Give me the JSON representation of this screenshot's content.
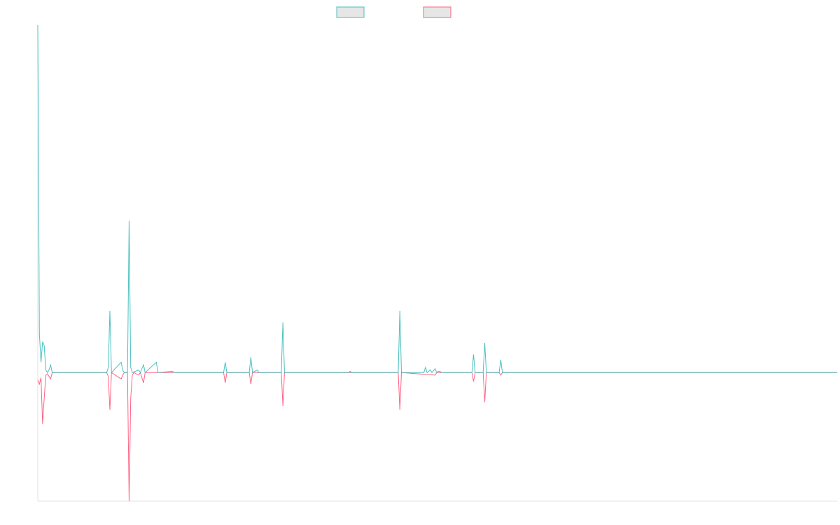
{
  "chart_data": {
    "type": "line",
    "title": "",
    "xlabel": "",
    "ylabel": "",
    "x_count": 500,
    "ylim": [
      -100,
      270
    ],
    "grid": false,
    "legend": "top-center",
    "colors": {
      "series_a": "#4bc0c0",
      "series_b": "#ff6384",
      "legend_fill": "#e6e6e6",
      "axis": "#e0e0e0"
    },
    "series": [
      {
        "name": "",
        "color": "#4bc0c0",
        "points": [
          [
            0,
            270
          ],
          [
            1,
            30
          ],
          [
            2,
            8
          ],
          [
            3,
            24
          ],
          [
            4,
            21
          ],
          [
            5,
            2
          ],
          [
            6,
            0
          ],
          [
            7,
            2
          ],
          [
            8,
            6
          ],
          [
            9,
            0
          ],
          [
            43,
            0
          ],
          [
            44,
            4
          ],
          [
            45,
            48
          ],
          [
            46,
            0
          ],
          [
            52,
            8
          ],
          [
            53,
            2
          ],
          [
            54,
            0
          ],
          [
            56,
            0
          ],
          [
            57,
            118
          ],
          [
            58,
            4
          ],
          [
            59,
            0
          ],
          [
            63,
            2
          ],
          [
            64,
            0
          ],
          [
            66,
            6
          ],
          [
            67,
            0
          ],
          [
            74,
            8
          ],
          [
            75,
            0
          ],
          [
            84,
            1
          ],
          [
            85,
            0
          ],
          [
            116,
            0
          ],
          [
            117,
            8
          ],
          [
            118,
            0
          ],
          [
            132,
            0
          ],
          [
            133,
            12
          ],
          [
            134,
            0
          ],
          [
            137,
            2
          ],
          [
            138,
            0
          ],
          [
            152,
            0
          ],
          [
            153,
            39
          ],
          [
            154,
            0
          ],
          [
            194,
            0
          ],
          [
            195,
            1
          ],
          [
            196,
            0
          ],
          [
            225,
            0
          ],
          [
            226,
            48
          ],
          [
            227,
            0
          ],
          [
            241,
            0
          ],
          [
            242,
            4
          ],
          [
            243,
            0
          ],
          [
            245,
            2
          ],
          [
            246,
            0
          ],
          [
            248,
            3
          ],
          [
            249,
            0
          ],
          [
            250,
            1
          ],
          [
            251,
            1
          ],
          [
            252,
            0
          ],
          [
            271,
            0
          ],
          [
            272,
            14
          ],
          [
            273,
            0
          ],
          [
            278,
            0
          ],
          [
            279,
            23
          ],
          [
            280,
            0
          ],
          [
            288,
            0
          ],
          [
            289,
            10
          ],
          [
            290,
            0
          ],
          [
            499,
            0
          ]
        ]
      },
      {
        "name": "",
        "color": "#ff6384",
        "points": [
          [
            0,
            -6
          ],
          [
            1,
            -9
          ],
          [
            2,
            -4
          ],
          [
            3,
            -40
          ],
          [
            4,
            -20
          ],
          [
            5,
            -2
          ],
          [
            6,
            -1
          ],
          [
            8,
            -5
          ],
          [
            9,
            0
          ],
          [
            43,
            0
          ],
          [
            44,
            -3
          ],
          [
            45,
            -29
          ],
          [
            46,
            0
          ],
          [
            52,
            -5
          ],
          [
            53,
            -2
          ],
          [
            54,
            0
          ],
          [
            56,
            0
          ],
          [
            57,
            -100
          ],
          [
            58,
            -20
          ],
          [
            59,
            -2
          ],
          [
            60,
            0
          ],
          [
            63,
            -2
          ],
          [
            64,
            0
          ],
          [
            66,
            -8
          ],
          [
            67,
            0
          ],
          [
            116,
            0
          ],
          [
            117,
            -8
          ],
          [
            118,
            0
          ],
          [
            132,
            0
          ],
          [
            133,
            -9
          ],
          [
            134,
            0
          ],
          [
            152,
            0
          ],
          [
            153,
            -26
          ],
          [
            154,
            0
          ],
          [
            225,
            0
          ],
          [
            226,
            -29
          ],
          [
            227,
            0
          ],
          [
            248,
            -2
          ],
          [
            249,
            0
          ],
          [
            271,
            0
          ],
          [
            272,
            -7
          ],
          [
            273,
            0
          ],
          [
            278,
            0
          ],
          [
            279,
            -23
          ],
          [
            280,
            0
          ],
          [
            288,
            0
          ],
          [
            289,
            -2
          ],
          [
            290,
            0
          ],
          [
            499,
            0
          ]
        ]
      }
    ]
  }
}
